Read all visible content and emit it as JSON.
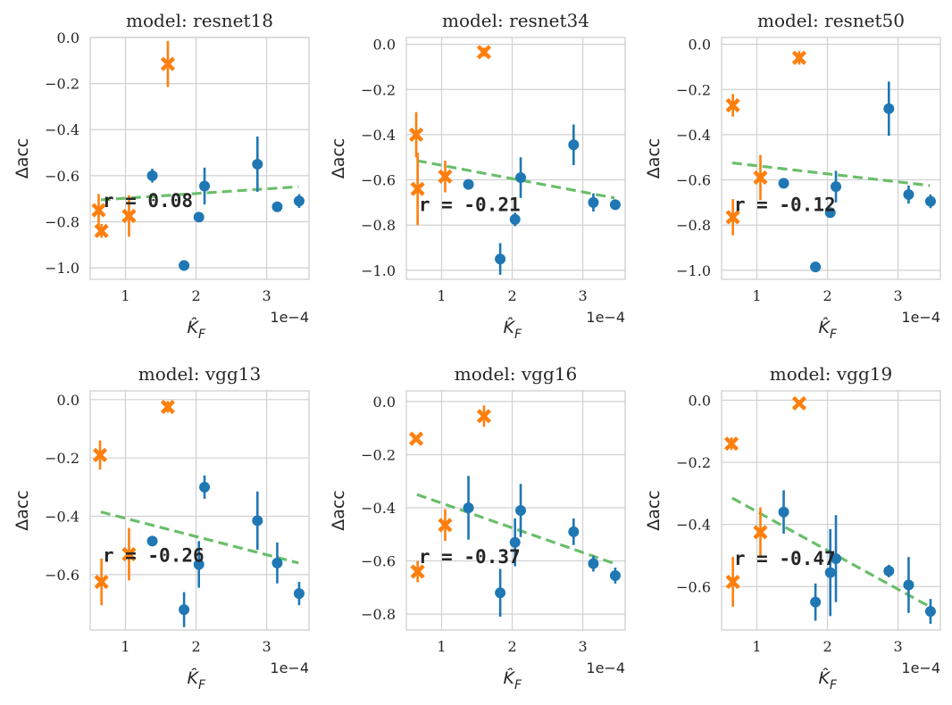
{
  "colors": {
    "blue": "#1f77b4",
    "orange": "#ff7f0e",
    "green": "#5cb85c",
    "grid": "#d0d0d0",
    "text": "#262626"
  },
  "chart_data": [
    {
      "type": "scatter",
      "title": "model: resnet18",
      "xlabel": "K̂_F",
      "ylabel": "Δacc",
      "x_scale_label": "1e−4",
      "xlim": [
        0.5,
        3.6
      ],
      "ylim": [
        -1.05,
        0.0
      ],
      "xticks": [
        1,
        2,
        3
      ],
      "yticks": [
        0.0,
        -0.2,
        -0.4,
        -0.6,
        -0.8,
        -1.0
      ],
      "ytick_labels": [
        "0.0",
        "−0.2",
        "−0.4",
        "−0.6",
        "−0.8",
        "−1.0"
      ],
      "r_label": "r = 0.08",
      "r_pos": [
        0.65,
        -0.71
      ],
      "trend": {
        "x": [
          0.65,
          3.45
        ],
        "y": [
          -0.705,
          -0.648
        ]
      },
      "series": [
        {
          "name": "orange",
          "marker": "x",
          "points": [
            {
              "x": 0.62,
              "y": -0.75,
              "err": 0.07
            },
            {
              "x": 0.66,
              "y": -0.84,
              "err": 0.03
            },
            {
              "x": 1.05,
              "y": -0.775,
              "err": 0.09
            },
            {
              "x": 1.6,
              "y": -0.115,
              "err": 0.1
            }
          ]
        },
        {
          "name": "blue",
          "marker": "o",
          "points": [
            {
              "x": 1.38,
              "y": -0.6,
              "err": 0.03
            },
            {
              "x": 1.83,
              "y": -0.99,
              "err": 0.0
            },
            {
              "x": 2.04,
              "y": -0.78,
              "err": 0.02
            },
            {
              "x": 2.12,
              "y": -0.645,
              "err": 0.08
            },
            {
              "x": 2.87,
              "y": -0.55,
              "err": 0.12
            },
            {
              "x": 3.15,
              "y": -0.735,
              "err": 0.0
            },
            {
              "x": 3.46,
              "y": -0.71,
              "err": 0.03
            }
          ]
        }
      ]
    },
    {
      "type": "scatter",
      "title": "model: resnet34",
      "xlabel": "K̂_F",
      "ylabel": "Δacc",
      "x_scale_label": "1e−4",
      "xlim": [
        0.5,
        3.6
      ],
      "ylim": [
        -1.04,
        0.03
      ],
      "xticks": [
        1,
        2,
        3
      ],
      "yticks": [
        0.0,
        -0.2,
        -0.4,
        -0.6,
        -0.8,
        -1.0
      ],
      "ytick_labels": [
        "0.0",
        "−0.2",
        "−0.4",
        "−0.6",
        "−0.8",
        "−1.0"
      ],
      "r_label": "r = -0.21",
      "r_pos": [
        0.65,
        -0.71
      ],
      "trend": {
        "x": [
          0.65,
          3.45
        ],
        "y": [
          -0.515,
          -0.68
        ]
      },
      "series": [
        {
          "name": "orange",
          "marker": "x",
          "points": [
            {
              "x": 0.64,
              "y": -0.4,
              "err": 0.1
            },
            {
              "x": 0.66,
              "y": -0.64,
              "err": 0.16
            },
            {
              "x": 1.05,
              "y": -0.585,
              "err": 0.07
            },
            {
              "x": 1.6,
              "y": -0.035,
              "err": 0.02
            }
          ]
        },
        {
          "name": "blue",
          "marker": "o",
          "points": [
            {
              "x": 1.38,
              "y": -0.62,
              "err": 0.0
            },
            {
              "x": 1.83,
              "y": -0.95,
              "err": 0.07
            },
            {
              "x": 2.04,
              "y": -0.775,
              "err": 0.03
            },
            {
              "x": 2.12,
              "y": -0.59,
              "err": 0.09
            },
            {
              "x": 2.87,
              "y": -0.445,
              "err": 0.09
            },
            {
              "x": 3.15,
              "y": -0.7,
              "err": 0.04
            },
            {
              "x": 3.46,
              "y": -0.71,
              "err": 0.0
            }
          ]
        }
      ]
    },
    {
      "type": "scatter",
      "title": "model: resnet50",
      "xlabel": "K̂_F",
      "ylabel": "Δacc",
      "x_scale_label": "1e−4",
      "xlim": [
        0.5,
        3.6
      ],
      "ylim": [
        -1.04,
        0.03
      ],
      "xticks": [
        1,
        2,
        3
      ],
      "yticks": [
        0.0,
        -0.2,
        -0.4,
        -0.6,
        -0.8,
        -1.0
      ],
      "ytick_labels": [
        "0.0",
        "−0.2",
        "−0.4",
        "−0.6",
        "−0.8",
        "−1.0"
      ],
      "r_label": "r = -0.12",
      "r_pos": [
        0.65,
        -0.71
      ],
      "trend": {
        "x": [
          0.65,
          3.45
        ],
        "y": [
          -0.525,
          -0.625
        ]
      },
      "series": [
        {
          "name": "orange",
          "marker": "x",
          "points": [
            {
              "x": 0.66,
              "y": -0.27,
              "err": 0.05
            },
            {
              "x": 0.66,
              "y": -0.765,
              "err": 0.08
            },
            {
              "x": 1.05,
              "y": -0.59,
              "err": 0.1
            },
            {
              "x": 1.6,
              "y": -0.06,
              "err": 0.03
            }
          ]
        },
        {
          "name": "blue",
          "marker": "o",
          "points": [
            {
              "x": 1.38,
              "y": -0.615,
              "err": 0.0
            },
            {
              "x": 1.83,
              "y": -0.985,
              "err": 0.0
            },
            {
              "x": 2.04,
              "y": -0.745,
              "err": 0.02
            },
            {
              "x": 2.12,
              "y": -0.63,
              "err": 0.07
            },
            {
              "x": 2.87,
              "y": -0.285,
              "err": 0.12
            },
            {
              "x": 3.15,
              "y": -0.665,
              "err": 0.04
            },
            {
              "x": 3.46,
              "y": -0.695,
              "err": 0.03
            }
          ]
        }
      ]
    },
    {
      "type": "scatter",
      "title": "model: vgg13",
      "xlabel": "K̂_F",
      "ylabel": "Δacc",
      "x_scale_label": "1e−4",
      "xlim": [
        0.5,
        3.6
      ],
      "ylim": [
        -0.79,
        0.03
      ],
      "xticks": [
        1,
        2,
        3
      ],
      "yticks": [
        0.0,
        -0.2,
        -0.4,
        -0.6
      ],
      "ytick_labels": [
        "0.0",
        "−0.2",
        "−0.4",
        "−0.6"
      ],
      "r_label": "r = -0.26",
      "r_pos": [
        0.65,
        -0.535
      ],
      "trend": {
        "x": [
          0.65,
          3.45
        ],
        "y": [
          -0.385,
          -0.56
        ]
      },
      "series": [
        {
          "name": "orange",
          "marker": "x",
          "points": [
            {
              "x": 0.64,
              "y": -0.19,
              "err": 0.05
            },
            {
              "x": 0.66,
              "y": -0.625,
              "err": 0.08
            },
            {
              "x": 1.05,
              "y": -0.53,
              "err": 0.09
            },
            {
              "x": 1.6,
              "y": -0.025,
              "err": 0.02
            }
          ]
        },
        {
          "name": "blue",
          "marker": "o",
          "points": [
            {
              "x": 1.38,
              "y": -0.485,
              "err": 0.0
            },
            {
              "x": 1.83,
              "y": -0.72,
              "err": 0.06
            },
            {
              "x": 2.04,
              "y": -0.565,
              "err": 0.08
            },
            {
              "x": 2.12,
              "y": -0.3,
              "err": 0.04
            },
            {
              "x": 2.87,
              "y": -0.415,
              "err": 0.1
            },
            {
              "x": 3.15,
              "y": -0.56,
              "err": 0.07
            },
            {
              "x": 3.46,
              "y": -0.665,
              "err": 0.04
            }
          ]
        }
      ]
    },
    {
      "type": "scatter",
      "title": "model: vgg16",
      "xlabel": "K̂_F",
      "ylabel": "Δacc",
      "x_scale_label": "1e−4",
      "xlim": [
        0.5,
        3.6
      ],
      "ylim": [
        -0.86,
        0.04
      ],
      "xticks": [
        1,
        2,
        3
      ],
      "yticks": [
        0.0,
        -0.2,
        -0.4,
        -0.6,
        -0.8
      ],
      "ytick_labels": [
        "0.0",
        "−0.2",
        "−0.4",
        "−0.6",
        "−0.8"
      ],
      "r_label": "r = -0.37",
      "r_pos": [
        0.65,
        -0.585
      ],
      "trend": {
        "x": [
          0.65,
          3.45
        ],
        "y": [
          -0.35,
          -0.61
        ]
      },
      "series": [
        {
          "name": "orange",
          "marker": "x",
          "points": [
            {
              "x": 0.64,
              "y": -0.14,
              "err": 0.0
            },
            {
              "x": 0.66,
              "y": -0.64,
              "err": 0.04
            },
            {
              "x": 1.05,
              "y": -0.465,
              "err": 0.06
            },
            {
              "x": 1.6,
              "y": -0.055,
              "err": 0.04
            }
          ]
        },
        {
          "name": "blue",
          "marker": "o",
          "points": [
            {
              "x": 1.38,
              "y": -0.4,
              "err": 0.12
            },
            {
              "x": 1.83,
              "y": -0.72,
              "err": 0.09
            },
            {
              "x": 2.04,
              "y": -0.53,
              "err": 0.09
            },
            {
              "x": 2.12,
              "y": -0.41,
              "err": 0.1
            },
            {
              "x": 2.87,
              "y": -0.49,
              "err": 0.05
            },
            {
              "x": 3.15,
              "y": -0.61,
              "err": 0.03
            },
            {
              "x": 3.46,
              "y": -0.655,
              "err": 0.03
            }
          ]
        }
      ]
    },
    {
      "type": "scatter",
      "title": "model: vgg19",
      "xlabel": "K̂_F",
      "ylabel": "Δacc",
      "x_scale_label": "1e−4",
      "xlim": [
        0.5,
        3.6
      ],
      "ylim": [
        -0.74,
        0.03
      ],
      "xticks": [
        1,
        2,
        3
      ],
      "yticks": [
        0.0,
        -0.2,
        -0.4,
        -0.6
      ],
      "ytick_labels": [
        "0.0",
        "−0.2",
        "−0.4",
        "−0.6"
      ],
      "r_label": "r = -0.47",
      "r_pos": [
        0.65,
        -0.51
      ],
      "trend": {
        "x": [
          0.65,
          3.45
        ],
        "y": [
          -0.315,
          -0.665
        ]
      },
      "series": [
        {
          "name": "orange",
          "marker": "x",
          "points": [
            {
              "x": 0.64,
              "y": -0.14,
              "err": 0.02
            },
            {
              "x": 0.66,
              "y": -0.585,
              "err": 0.08
            },
            {
              "x": 1.05,
              "y": -0.425,
              "err": 0.08
            },
            {
              "x": 1.6,
              "y": -0.01,
              "err": 0.0
            }
          ]
        },
        {
          "name": "blue",
          "marker": "o",
          "points": [
            {
              "x": 1.38,
              "y": -0.36,
              "err": 0.07
            },
            {
              "x": 1.83,
              "y": -0.65,
              "err": 0.06
            },
            {
              "x": 2.04,
              "y": -0.555,
              "err": 0.14
            },
            {
              "x": 2.12,
              "y": -0.51,
              "err": 0.14
            },
            {
              "x": 2.87,
              "y": -0.55,
              "err": 0.02
            },
            {
              "x": 3.15,
              "y": -0.595,
              "err": 0.09
            },
            {
              "x": 3.46,
              "y": -0.68,
              "err": 0.04
            }
          ]
        }
      ]
    }
  ]
}
